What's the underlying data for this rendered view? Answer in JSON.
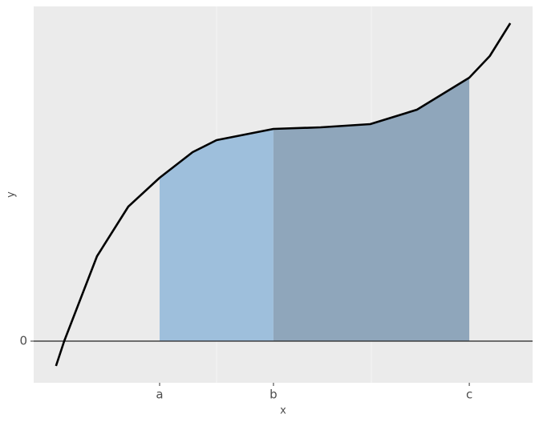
{
  "chart_data": {
    "type": "area-under-curve",
    "x_label": "x",
    "y_label": "y",
    "x": [
      0.09,
      0.162,
      0.45,
      0.725,
      1,
      1.29,
      1.5,
      2,
      2.415,
      2.85,
      3.26,
      3.72,
      3.9,
      4.08
    ],
    "values": [
      -0.31,
      0,
      1.06,
      1.68,
      2.04,
      2.36,
      2.51,
      2.65,
      2.67,
      2.71,
      2.89,
      3.29,
      3.56,
      3.97
    ],
    "line_color": "#000000",
    "fill_colors": [
      "#9ebfdc",
      "#8fa6bb"
    ],
    "xlim": [
      -0.106,
      4.276
    ],
    "ylim": [
      -0.52,
      4.18
    ],
    "xticks": [
      {
        "value": 1,
        "label": "a"
      },
      {
        "value": 2,
        "label": "b"
      },
      {
        "value": 3.72,
        "label": "c"
      }
    ],
    "yticks": [
      0
    ],
    "zero_line": true
  }
}
